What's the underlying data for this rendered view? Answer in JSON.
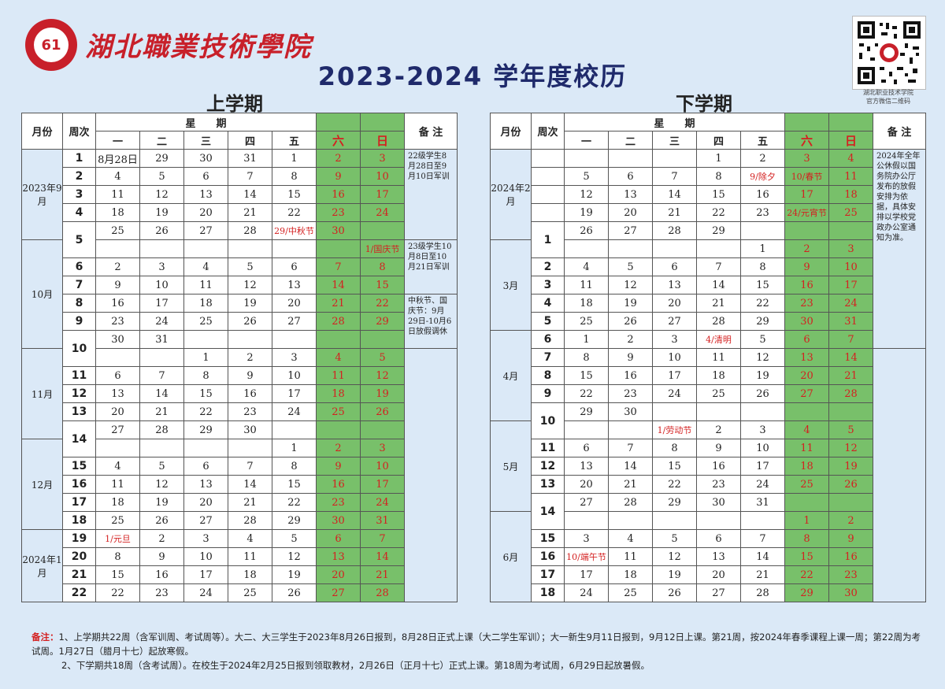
{
  "school": {
    "name": "湖北職業技術學院",
    "logo_text": "61"
  },
  "title": "2023-2024 学年度校历",
  "qr_caption": [
    "湖北职业技术学院",
    "官方微信二维码"
  ],
  "headers": {
    "month": "月份",
    "week": "周次",
    "weekday_group": "星　　期",
    "remark": "备 注",
    "days": [
      "一",
      "二",
      "三",
      "四",
      "五",
      "六",
      "日"
    ]
  },
  "sem1": {
    "title": "上学期",
    "months": [
      "2023年9月",
      "10月",
      "11月",
      "12月",
      "2024年1月"
    ],
    "remarks": [
      "22级学生8月28日至9月10日军训",
      "23级学生10月8日至10月21日军训",
      "中秋节、国庆节：9月29日-10月6日放假调休"
    ],
    "rows": [
      [
        "1",
        "8月28日",
        "29",
        "30",
        "31",
        "1",
        "2",
        "3"
      ],
      [
        "2",
        "4",
        "5",
        "6",
        "7",
        "8",
        "9",
        "10"
      ],
      [
        "3",
        "11",
        "12",
        "13",
        "14",
        "15",
        "16",
        "17"
      ],
      [
        "4",
        "18",
        "19",
        "20",
        "21",
        "22",
        "23",
        "24"
      ],
      [
        "5",
        "25",
        "26",
        "27",
        "28",
        "29/中秋节",
        "30",
        ""
      ],
      [
        "",
        "",
        "",
        "",
        "",
        "",
        "",
        "1/国庆节"
      ],
      [
        "6",
        "2",
        "3",
        "4",
        "5",
        "6",
        "7",
        "8"
      ],
      [
        "7",
        "9",
        "10",
        "11",
        "12",
        "13",
        "14",
        "15"
      ],
      [
        "8",
        "16",
        "17",
        "18",
        "19",
        "20",
        "21",
        "22"
      ],
      [
        "9",
        "23",
        "24",
        "25",
        "26",
        "27",
        "28",
        "29"
      ],
      [
        "10",
        "30",
        "31",
        "",
        "",
        "",
        "",
        ""
      ],
      [
        "",
        "",
        "",
        "1",
        "2",
        "3",
        "4",
        "5"
      ],
      [
        "11",
        "6",
        "7",
        "8",
        "9",
        "10",
        "11",
        "12"
      ],
      [
        "12",
        "13",
        "14",
        "15",
        "16",
        "17",
        "18",
        "19"
      ],
      [
        "13",
        "20",
        "21",
        "22",
        "23",
        "24",
        "25",
        "26"
      ],
      [
        "14",
        "27",
        "28",
        "29",
        "30",
        "",
        "",
        ""
      ],
      [
        "",
        "",
        "",
        "",
        "",
        "1",
        "2",
        "3"
      ],
      [
        "15",
        "4",
        "5",
        "6",
        "7",
        "8",
        "9",
        "10"
      ],
      [
        "16",
        "11",
        "12",
        "13",
        "14",
        "15",
        "16",
        "17"
      ],
      [
        "17",
        "18",
        "19",
        "20",
        "21",
        "22",
        "23",
        "24"
      ],
      [
        "18",
        "25",
        "26",
        "27",
        "28",
        "29",
        "30",
        "31"
      ],
      [
        "19",
        "1/元旦",
        "2",
        "3",
        "4",
        "5",
        "6",
        "7"
      ],
      [
        "20",
        "8",
        "9",
        "10",
        "11",
        "12",
        "13",
        "14"
      ],
      [
        "21",
        "15",
        "16",
        "17",
        "18",
        "19",
        "20",
        "21"
      ],
      [
        "22",
        "22",
        "23",
        "24",
        "25",
        "26",
        "27",
        "28"
      ]
    ]
  },
  "sem2": {
    "title": "下学期",
    "months": [
      "2024年2月",
      "3月",
      "4月",
      "5月",
      "6月"
    ],
    "remarks": [
      "2024年全年公休假以国务院办公厅发布的放假安排为依据，具体安排以学校党政办公室通知为准。"
    ],
    "rows": [
      [
        "",
        "",
        "",
        "",
        "1",
        "2",
        "3",
        "4"
      ],
      [
        "",
        "5",
        "6",
        "7",
        "8",
        "9/除夕",
        "10/春节",
        "11"
      ],
      [
        "",
        "12",
        "13",
        "14",
        "15",
        "16",
        "17",
        "18"
      ],
      [
        "",
        "19",
        "20",
        "21",
        "22",
        "23",
        "24/元宵节",
        "25"
      ],
      [
        "1",
        "26",
        "27",
        "28",
        "29",
        "",
        "",
        ""
      ],
      [
        "",
        "",
        "",
        "",
        "",
        "1",
        "2",
        "3"
      ],
      [
        "2",
        "4",
        "5",
        "6",
        "7",
        "8",
        "9",
        "10"
      ],
      [
        "3",
        "11",
        "12",
        "13",
        "14",
        "15",
        "16",
        "17"
      ],
      [
        "4",
        "18",
        "19",
        "20",
        "21",
        "22",
        "23",
        "24"
      ],
      [
        "5",
        "25",
        "26",
        "27",
        "28",
        "29",
        "30",
        "31"
      ],
      [
        "6",
        "1",
        "2",
        "3",
        "4/清明",
        "5",
        "6",
        "7"
      ],
      [
        "7",
        "8",
        "9",
        "10",
        "11",
        "12",
        "13",
        "14"
      ],
      [
        "8",
        "15",
        "16",
        "17",
        "18",
        "19",
        "20",
        "21"
      ],
      [
        "9",
        "22",
        "23",
        "24",
        "25",
        "26",
        "27",
        "28"
      ],
      [
        "10",
        "29",
        "30",
        "",
        "",
        "",
        "",
        ""
      ],
      [
        "",
        "",
        "",
        "1/劳动节",
        "2",
        "3",
        "4",
        "5"
      ],
      [
        "11",
        "6",
        "7",
        "8",
        "9",
        "10",
        "11",
        "12"
      ],
      [
        "12",
        "13",
        "14",
        "15",
        "16",
        "17",
        "18",
        "19"
      ],
      [
        "13",
        "20",
        "21",
        "22",
        "23",
        "24",
        "25",
        "26"
      ],
      [
        "14",
        "27",
        "28",
        "29",
        "30",
        "31",
        "",
        ""
      ],
      [
        "",
        "",
        "",
        "",
        "",
        "",
        "1",
        "2"
      ],
      [
        "15",
        "3",
        "4",
        "5",
        "6",
        "7",
        "8",
        "9"
      ],
      [
        "16",
        "10/端午节",
        "11",
        "12",
        "13",
        "14",
        "15",
        "16"
      ],
      [
        "17",
        "17",
        "18",
        "19",
        "20",
        "21",
        "22",
        "23"
      ],
      [
        "18",
        "24",
        "25",
        "26",
        "27",
        "28",
        "29",
        "30"
      ]
    ]
  },
  "notes": {
    "label": "备注：",
    "lines": [
      "1、上学期共22周（含军训周、考试周等）。大二、大三学生于2023年8月26日报到，8月28日正式上课（大二学生军训）；大一新生9月11日报到，9月12日上课。第21周，按2024年春季课程上课一周；第22周为考试周。1月27日（腊月十七）起放寒假。",
      "2、下学期共18周（含考试周）。在校生于2024年2月25日报到领取教材，2月26日（正月十七）正式上课。第18周为考试周，6月29日起放暑假。"
    ]
  },
  "colors": {
    "weekend_bg": "#78c06a",
    "holiday": "#d42020",
    "title": "#1f2a6b",
    "school": "#c8202a"
  }
}
